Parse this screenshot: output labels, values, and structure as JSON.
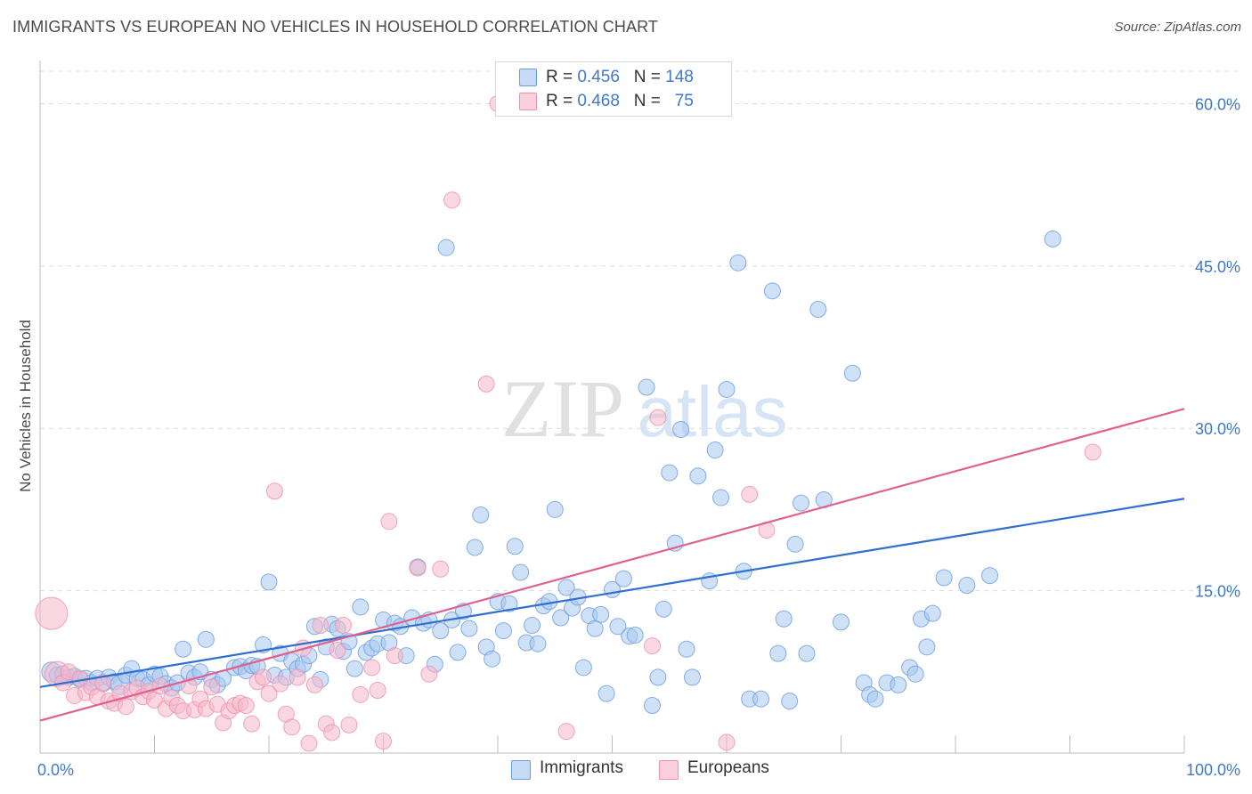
{
  "title": "IMMIGRANTS VS EUROPEAN NO VEHICLES IN HOUSEHOLD CORRELATION CHART",
  "source": "Source: ZipAtlas.com",
  "watermark": {
    "zip": "ZIP",
    "atlas": "atlas"
  },
  "legend": {
    "immigrants": {
      "r_label": "R =",
      "r_value": "0.456",
      "n_label": "N =",
      "n_value": "148"
    },
    "europeans": {
      "r_label": "R =",
      "r_value": "0.468",
      "n_label": "N =",
      "n_value": "75"
    }
  },
  "colors": {
    "immigrants_fill": "#a8c8f0",
    "immigrants_stroke": "#6a9be0",
    "immigrants_line": "#2f6fd0",
    "europeans_fill": "#f6b8cb",
    "europeans_stroke": "#ee8fae",
    "europeans_line": "#e0608f",
    "tick": "#3f79c9",
    "grid": "#dcdcdc"
  },
  "chart_data": {
    "type": "scatter",
    "xlabel": "",
    "ylabel": "No Vehicles in Household",
    "xlim": [
      0,
      100
    ],
    "ylim": [
      0,
      63
    ],
    "x_tick_labels": [
      {
        "value": 0,
        "label": "0.0%"
      },
      {
        "value": 100,
        "label": "100.0%"
      }
    ],
    "y_tick_labels": [
      {
        "value": 15,
        "label": "15.0%"
      },
      {
        "value": 30,
        "label": "30.0%"
      },
      {
        "value": 45,
        "label": "45.0%"
      },
      {
        "value": 60,
        "label": "60.0%"
      }
    ],
    "grid": true,
    "legend_position": "top-center",
    "series": [
      {
        "name": "Immigrants",
        "trend": {
          "x": [
            0,
            100
          ],
          "y": [
            6.1,
            23.5
          ]
        },
        "points": [
          [
            1,
            7.5
          ],
          [
            1.5,
            7.2
          ],
          [
            2,
            7.3
          ],
          [
            2.5,
            7.0
          ],
          [
            3,
            7.1
          ],
          [
            3.5,
            6.8
          ],
          [
            4,
            6.9
          ],
          [
            4.5,
            6.5
          ],
          [
            5,
            6.9
          ],
          [
            5.5,
            6.4
          ],
          [
            6,
            7.0
          ],
          [
            6.5,
            6.6
          ],
          [
            7,
            6.3
          ],
          [
            7.5,
            7.2
          ],
          [
            8,
            7.8
          ],
          [
            8.5,
            6.9
          ],
          [
            9,
            6.8
          ],
          [
            9.5,
            6.3
          ],
          [
            10,
            7.3
          ],
          [
            10.5,
            7.1
          ],
          [
            11,
            6.4
          ],
          [
            11.5,
            6.0
          ],
          [
            12,
            6.5
          ],
          [
            12.5,
            9.6
          ],
          [
            13,
            7.4
          ],
          [
            13.5,
            7.0
          ],
          [
            14,
            7.5
          ],
          [
            14.5,
            10.5
          ],
          [
            15,
            6.8
          ],
          [
            15.5,
            6.3
          ],
          [
            16,
            6.9
          ],
          [
            17,
            7.9
          ],
          [
            17.5,
            8.0
          ],
          [
            18,
            7.6
          ],
          [
            18.5,
            8.1
          ],
          [
            19,
            8.0
          ],
          [
            19.5,
            10.0
          ],
          [
            20,
            15.8
          ],
          [
            20.5,
            7.2
          ],
          [
            21,
            9.2
          ],
          [
            21.5,
            7.0
          ],
          [
            22,
            8.5
          ],
          [
            22.5,
            7.8
          ],
          [
            23,
            8.2
          ],
          [
            23.5,
            9.0
          ],
          [
            24,
            11.7
          ],
          [
            24.5,
            6.8
          ],
          [
            25,
            9.8
          ],
          [
            25.5,
            11.9
          ],
          [
            26,
            11.5
          ],
          [
            26.5,
            9.4
          ],
          [
            27,
            10.3
          ],
          [
            27.5,
            7.8
          ],
          [
            28,
            13.5
          ],
          [
            28.5,
            9.3
          ],
          [
            29,
            9.7
          ],
          [
            29.5,
            10.1
          ],
          [
            30,
            12.3
          ],
          [
            30.5,
            10.2
          ],
          [
            31,
            12.0
          ],
          [
            31.5,
            11.7
          ],
          [
            32,
            9.0
          ],
          [
            32.5,
            12.5
          ],
          [
            33,
            17.2
          ],
          [
            33.5,
            12.0
          ],
          [
            34,
            12.3
          ],
          [
            34.5,
            8.2
          ],
          [
            35,
            11.3
          ],
          [
            35.5,
            46.7
          ],
          [
            36,
            12.3
          ],
          [
            36.5,
            9.3
          ],
          [
            37,
            13.1
          ],
          [
            37.5,
            11.5
          ],
          [
            38,
            19.0
          ],
          [
            38.5,
            22.0
          ],
          [
            39,
            9.8
          ],
          [
            39.5,
            8.7
          ],
          [
            40,
            14.0
          ],
          [
            40.5,
            11.3
          ],
          [
            41,
            13.8
          ],
          [
            41.5,
            19.1
          ],
          [
            42,
            16.7
          ],
          [
            42.5,
            10.2
          ],
          [
            43,
            11.8
          ],
          [
            43.5,
            10.1
          ],
          [
            44,
            13.6
          ],
          [
            44.5,
            14.0
          ],
          [
            45,
            22.5
          ],
          [
            45.5,
            12.5
          ],
          [
            46,
            15.3
          ],
          [
            46.5,
            13.4
          ],
          [
            47,
            14.4
          ],
          [
            47.5,
            7.9
          ],
          [
            48,
            12.7
          ],
          [
            48.5,
            11.5
          ],
          [
            49,
            12.8
          ],
          [
            49.5,
            5.5
          ],
          [
            50,
            15.1
          ],
          [
            50.5,
            11.7
          ],
          [
            51,
            16.1
          ],
          [
            51.5,
            10.8
          ],
          [
            52,
            10.9
          ],
          [
            53,
            33.8
          ],
          [
            53.5,
            4.4
          ],
          [
            54,
            7.0
          ],
          [
            54.5,
            13.3
          ],
          [
            55,
            25.9
          ],
          [
            55.5,
            19.4
          ],
          [
            56,
            29.9
          ],
          [
            56.5,
            9.6
          ],
          [
            57,
            7.0
          ],
          [
            57.5,
            25.6
          ],
          [
            58.5,
            15.9
          ],
          [
            59,
            28.0
          ],
          [
            59.5,
            23.6
          ],
          [
            60,
            33.6
          ],
          [
            61,
            45.3
          ],
          [
            61.5,
            16.8
          ],
          [
            62,
            5.0
          ],
          [
            63,
            5.0
          ],
          [
            64,
            42.7
          ],
          [
            64.5,
            9.2
          ],
          [
            65,
            12.4
          ],
          [
            65.5,
            4.8
          ],
          [
            66,
            19.3
          ],
          [
            66.5,
            23.1
          ],
          [
            67,
            9.2
          ],
          [
            68,
            41.0
          ],
          [
            68.5,
            23.4
          ],
          [
            70,
            12.1
          ],
          [
            71,
            35.1
          ],
          [
            72,
            6.5
          ],
          [
            72.5,
            5.4
          ],
          [
            73,
            5.0
          ],
          [
            74,
            6.5
          ],
          [
            75,
            6.3
          ],
          [
            76,
            7.9
          ],
          [
            76.5,
            7.3
          ],
          [
            77,
            12.4
          ],
          [
            77.5,
            9.8
          ],
          [
            78,
            12.9
          ],
          [
            79,
            16.2
          ],
          [
            81,
            15.5
          ],
          [
            83,
            16.4
          ],
          [
            88.5,
            47.5
          ]
        ]
      },
      {
        "name": "Europeans",
        "trend": {
          "x": [
            0,
            100
          ],
          "y": [
            3.0,
            31.8
          ]
        },
        "points": [
          [
            1,
            12.9
          ],
          [
            1.5,
            7.3
          ],
          [
            2,
            6.5
          ],
          [
            2.5,
            7.5
          ],
          [
            3,
            5.3
          ],
          [
            3.5,
            6.9
          ],
          [
            4,
            5.6
          ],
          [
            4.5,
            6.1
          ],
          [
            5,
            5.2
          ],
          [
            5.5,
            6.5
          ],
          [
            6,
            4.8
          ],
          [
            6.5,
            4.6
          ],
          [
            7,
            5.5
          ],
          [
            7.5,
            4.3
          ],
          [
            8,
            5.7
          ],
          [
            8.5,
            6.0
          ],
          [
            9,
            5.2
          ],
          [
            9.5,
            5.7
          ],
          [
            10,
            4.9
          ],
          [
            10.5,
            6.2
          ],
          [
            11,
            4.1
          ],
          [
            11.5,
            5.1
          ],
          [
            12,
            4.4
          ],
          [
            12.5,
            3.9
          ],
          [
            13,
            6.2
          ],
          [
            13.5,
            4.0
          ],
          [
            14,
            5.0
          ],
          [
            14.5,
            4.1
          ],
          [
            15,
            6.1
          ],
          [
            15.5,
            4.5
          ],
          [
            16,
            2.8
          ],
          [
            16.5,
            3.9
          ],
          [
            17,
            4.4
          ],
          [
            17.5,
            4.6
          ],
          [
            18,
            4.4
          ],
          [
            18.5,
            2.7
          ],
          [
            19,
            6.6
          ],
          [
            19.5,
            7.0
          ],
          [
            20,
            5.5
          ],
          [
            20.5,
            24.2
          ],
          [
            21,
            6.4
          ],
          [
            21.5,
            3.6
          ],
          [
            22,
            2.4
          ],
          [
            22.5,
            7.0
          ],
          [
            23,
            9.7
          ],
          [
            23.5,
            0.9
          ],
          [
            24,
            6.3
          ],
          [
            24.5,
            11.8
          ],
          [
            25,
            2.7
          ],
          [
            25.5,
            1.9
          ],
          [
            26,
            9.5
          ],
          [
            26.5,
            11.8
          ],
          [
            27,
            2.6
          ],
          [
            28,
            5.4
          ],
          [
            29,
            7.9
          ],
          [
            29.5,
            5.8
          ],
          [
            30,
            1.1
          ],
          [
            30.5,
            21.4
          ],
          [
            31,
            9.0
          ],
          [
            33,
            17.1
          ],
          [
            34,
            7.3
          ],
          [
            35,
            17.0
          ],
          [
            36,
            51.1
          ],
          [
            39,
            34.1
          ],
          [
            40,
            60.0
          ],
          [
            46,
            2.0
          ],
          [
            53.5,
            9.9
          ],
          [
            54,
            31.0
          ],
          [
            60,
            1.0
          ],
          [
            62,
            23.9
          ],
          [
            63.5,
            20.6
          ],
          [
            92,
            27.8
          ]
        ]
      }
    ]
  },
  "bottom_legend": {
    "immigrants": "Immigrants",
    "europeans": "Europeans"
  }
}
